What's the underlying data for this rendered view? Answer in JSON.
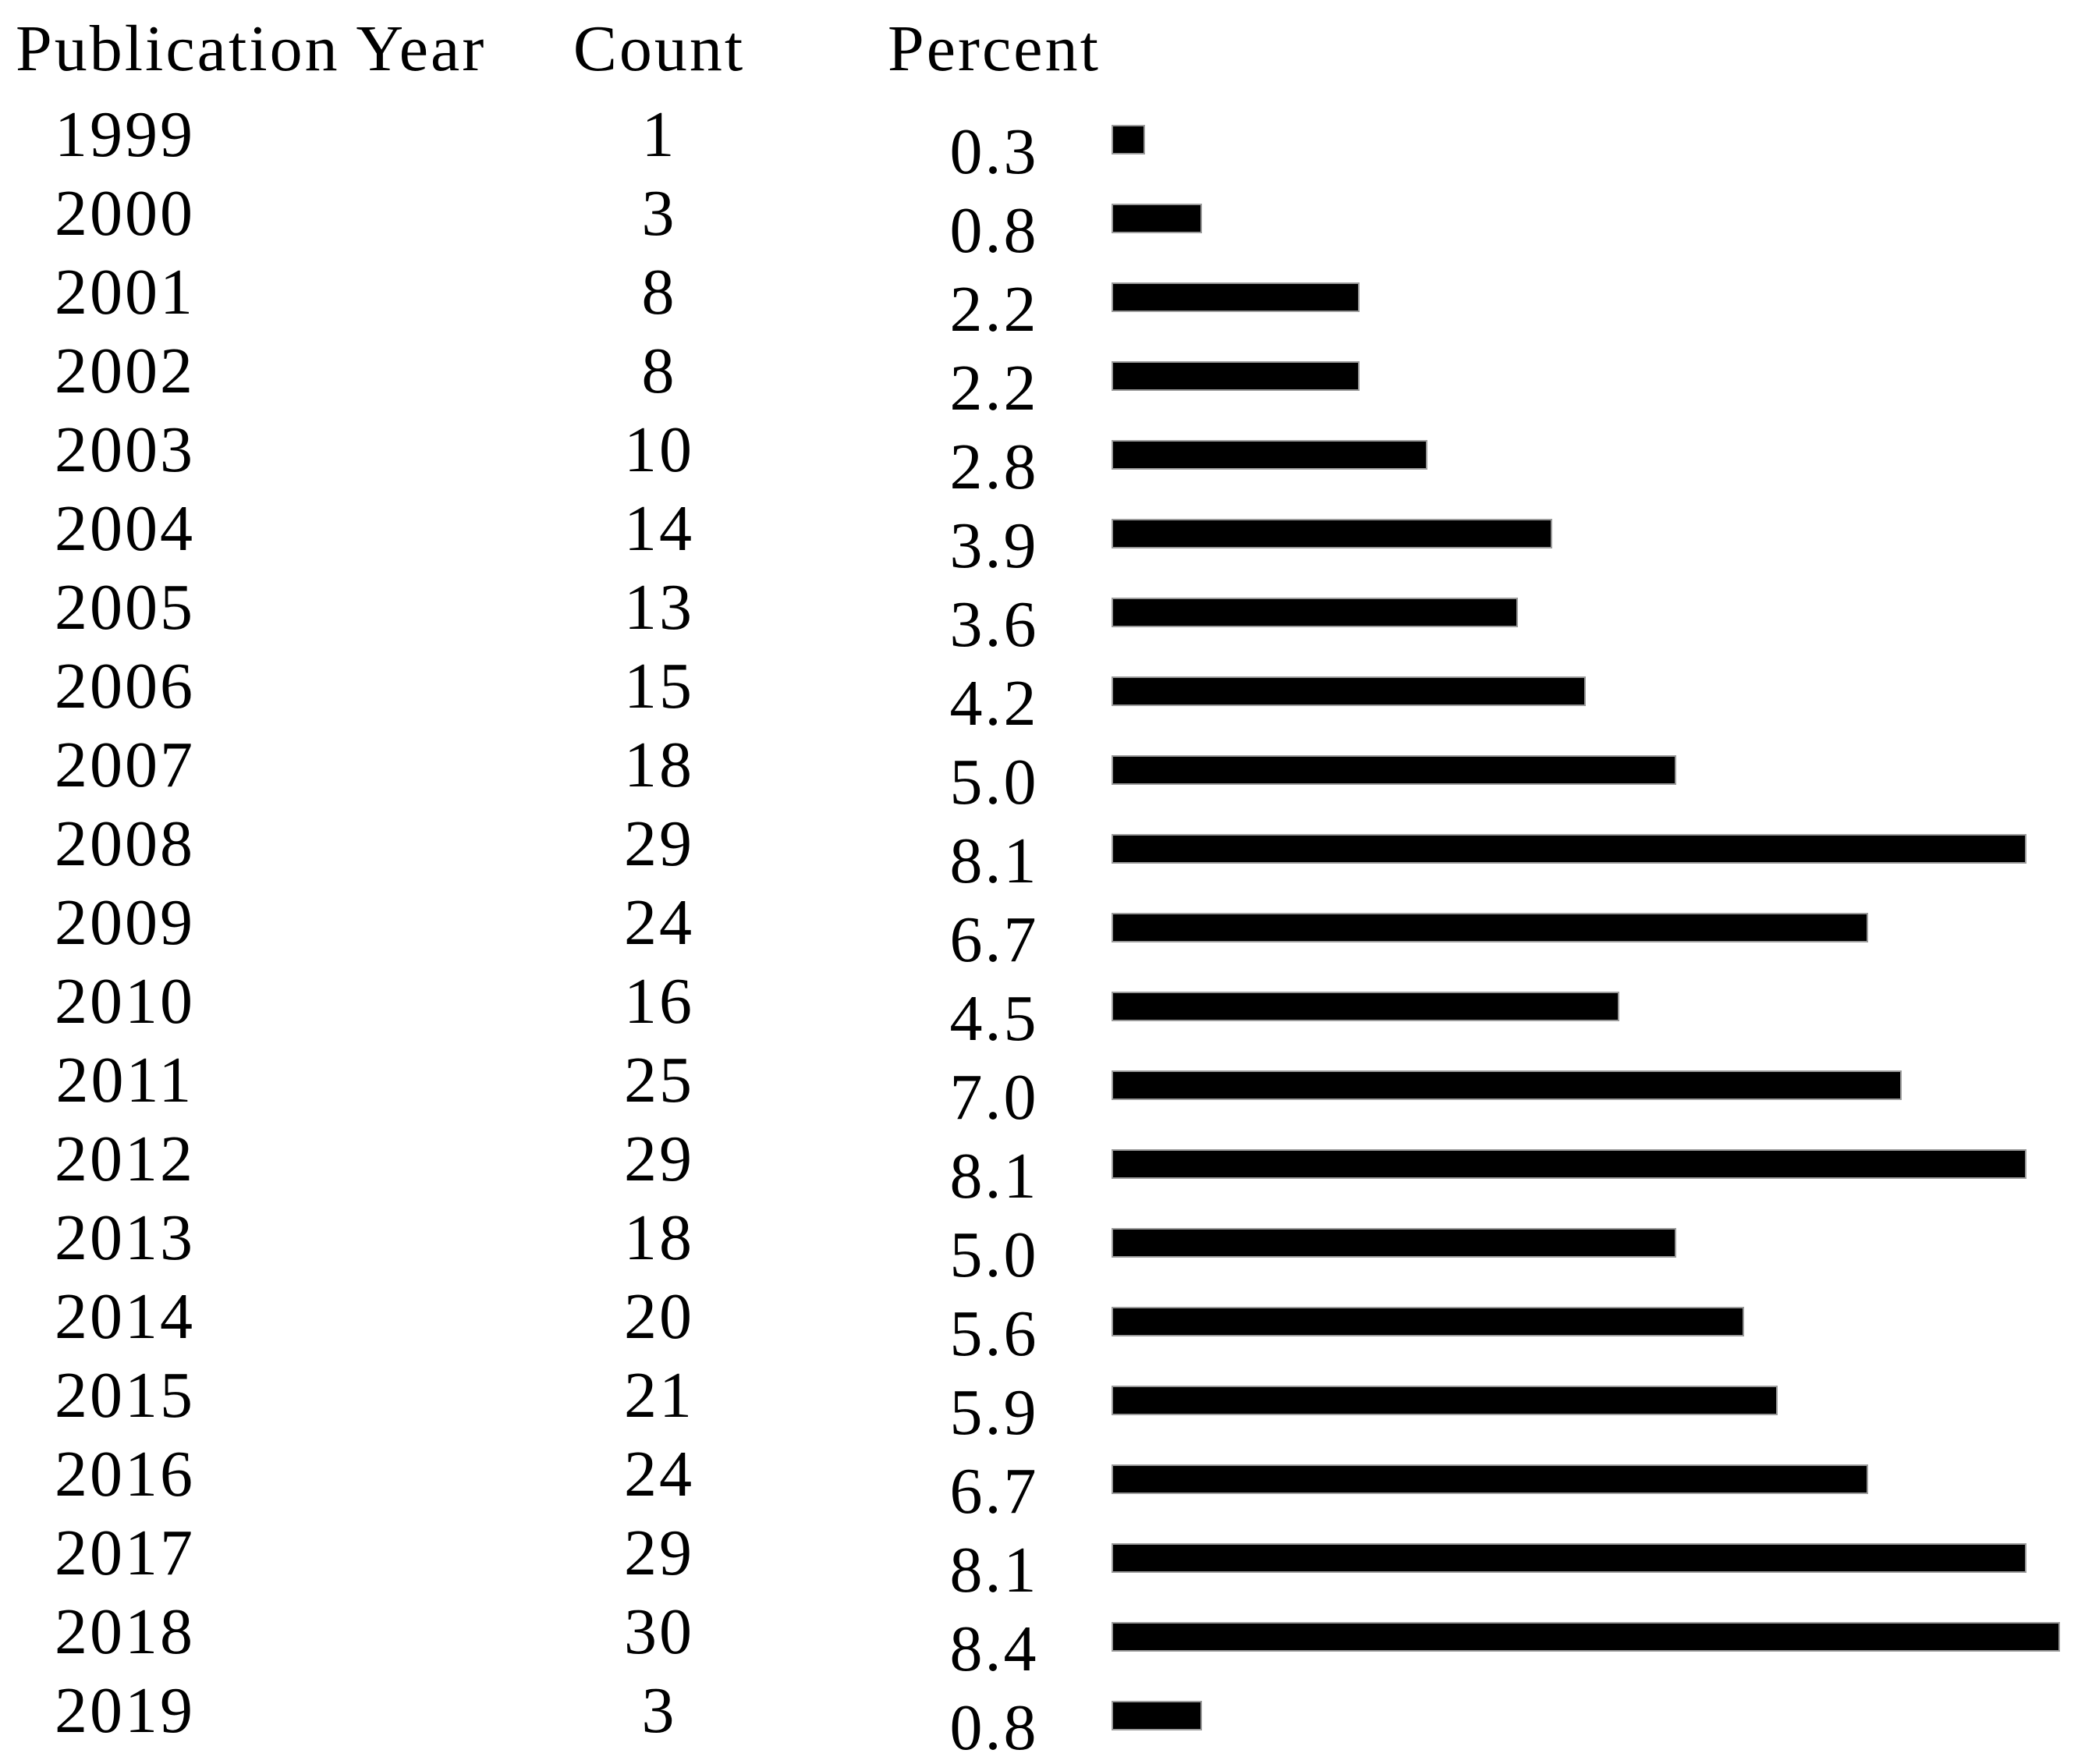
{
  "header": {
    "year": "Publication Year",
    "count": "Count",
    "percent": "Percent"
  },
  "rows": [
    {
      "year": "1999",
      "count": "1",
      "percent": "0.3"
    },
    {
      "year": "2000",
      "count": "3",
      "percent": "0.8"
    },
    {
      "year": "2001",
      "count": "8",
      "percent": "2.2"
    },
    {
      "year": "2002",
      "count": "8",
      "percent": "2.2"
    },
    {
      "year": "2003",
      "count": "10",
      "percent": "2.8"
    },
    {
      "year": "2004",
      "count": "14",
      "percent": "3.9"
    },
    {
      "year": "2005",
      "count": "13",
      "percent": "3.6"
    },
    {
      "year": "2006",
      "count": "15",
      "percent": "4.2"
    },
    {
      "year": "2007",
      "count": "18",
      "percent": "5.0"
    },
    {
      "year": "2008",
      "count": "29",
      "percent": "8.1"
    },
    {
      "year": "2009",
      "count": "24",
      "percent": "6.7"
    },
    {
      "year": "2010",
      "count": "16",
      "percent": "4.5"
    },
    {
      "year": "2011",
      "count": "25",
      "percent": "7.0"
    },
    {
      "year": "2012",
      "count": "29",
      "percent": "8.1"
    },
    {
      "year": "2013",
      "count": "18",
      "percent": "5.0"
    },
    {
      "year": "2014",
      "count": "20",
      "percent": "5.6"
    },
    {
      "year": "2015",
      "count": "21",
      "percent": "5.9"
    },
    {
      "year": "2016",
      "count": "24",
      "percent": "6.7"
    },
    {
      "year": "2017",
      "count": "29",
      "percent": "8.1"
    },
    {
      "year": "2018",
      "count": "30",
      "percent": "8.4"
    },
    {
      "year": "2019",
      "count": "3",
      "percent": "0.8"
    }
  ],
  "chart_data": {
    "type": "bar",
    "orientation": "horizontal",
    "title": "",
    "xlabel": "Percent",
    "ylabel": "Publication Year",
    "columns": [
      "Publication Year",
      "Count",
      "Percent"
    ],
    "categories": [
      "1999",
      "2000",
      "2001",
      "2002",
      "2003",
      "2004",
      "2005",
      "2006",
      "2007",
      "2008",
      "2009",
      "2010",
      "2011",
      "2012",
      "2013",
      "2014",
      "2015",
      "2016",
      "2017",
      "2018",
      "2019"
    ],
    "series": [
      {
        "name": "Count",
        "values": [
          1,
          3,
          8,
          8,
          10,
          14,
          13,
          15,
          18,
          29,
          24,
          16,
          25,
          29,
          18,
          20,
          21,
          24,
          29,
          30,
          3
        ]
      },
      {
        "name": "Percent",
        "values": [
          0.3,
          0.8,
          2.2,
          2.2,
          2.8,
          3.9,
          3.6,
          4.2,
          5.0,
          8.1,
          6.7,
          4.5,
          7.0,
          8.1,
          5.0,
          5.6,
          5.9,
          6.7,
          8.1,
          8.4,
          0.8
        ]
      }
    ],
    "xlim": [
      0,
      8.4
    ],
    "grid": false,
    "legend": false,
    "bar_color": "#000000",
    "bar_border_color": "#9b9b9b",
    "background_color": "#ffffff"
  }
}
